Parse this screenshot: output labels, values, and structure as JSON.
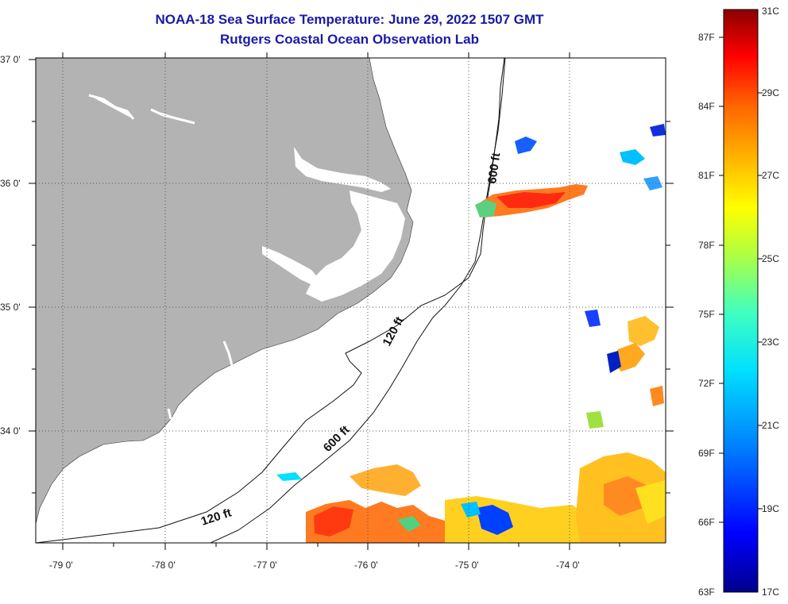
{
  "title": {
    "line1": "NOAA-18 Sea Surface Temperature:  June 29, 2022 1507 GMT",
    "line2": "Rutgers Coastal Ocean Observation Lab"
  },
  "axes": {
    "lat_labels": [
      "37 0'",
      "36 0'",
      "35 0'",
      "34 0'"
    ],
    "lon_labels": [
      "-79 0'",
      "-78 0'",
      "-77 0'",
      "-76 0'",
      "-75 0'",
      "-74 0'"
    ]
  },
  "contours": {
    "labels": [
      "600 ft",
      "120 ft",
      "600 ft",
      "120 ft"
    ]
  },
  "colorbar": {
    "fahrenheit": [
      "87F",
      "84F",
      "81F",
      "78F",
      "75F",
      "72F",
      "69F",
      "66F",
      "63F"
    ],
    "celsius": [
      "31C",
      "29C",
      "27C",
      "25C",
      "23C",
      "21C",
      "19C",
      "17C"
    ]
  },
  "colors": {
    "land": "#b3b3b3",
    "title": "#1a1aa6",
    "sst_scale": [
      "#00008b",
      "#0000ff",
      "#0080ff",
      "#00e0ff",
      "#40ffc0",
      "#b0ff40",
      "#ffff00",
      "#ffb000",
      "#ff6000",
      "#ff0000",
      "#8b0000"
    ]
  }
}
